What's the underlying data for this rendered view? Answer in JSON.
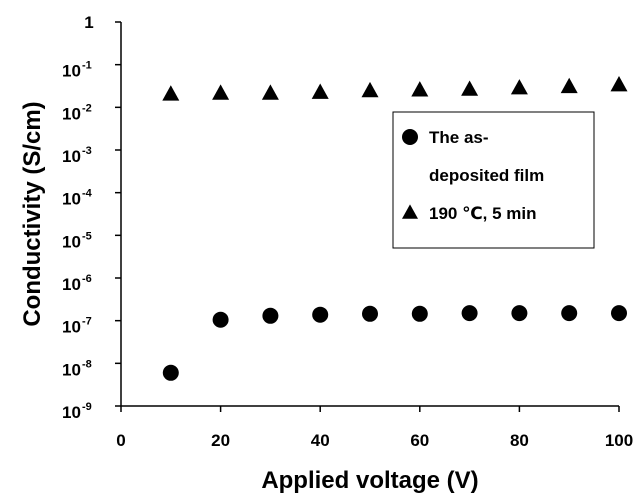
{
  "chart_data": {
    "type": "scatter",
    "xlabel": "Applied voltage (V)",
    "ylabel": "Conductivity (S/cm)",
    "xlim": [
      0,
      100
    ],
    "ylim_log10": [
      -9,
      0
    ],
    "y_scale": "log",
    "grid": false,
    "legend_position": "right-center",
    "x_ticks": [
      "0",
      "20",
      "40",
      "60",
      "80",
      "100"
    ],
    "y_ticks": [
      {
        "base": "10",
        "exp": "-9"
      },
      {
        "base": "10",
        "exp": "-8"
      },
      {
        "base": "10",
        "exp": "-7"
      },
      {
        "base": "10",
        "exp": "-6"
      },
      {
        "base": "10",
        "exp": "-5"
      },
      {
        "base": "10",
        "exp": "-4"
      },
      {
        "base": "10",
        "exp": "-3"
      },
      {
        "base": "10",
        "exp": "-2"
      },
      {
        "base": "10",
        "exp": "-1"
      },
      {
        "base": "1",
        "exp": ""
      }
    ],
    "series": [
      {
        "name": "The as-deposited film",
        "legend_lines": [
          "The as-",
          "deposited film"
        ],
        "marker": "circle",
        "color": "#000000",
        "x": [
          10,
          20,
          30,
          40,
          50,
          60,
          70,
          80,
          90,
          100
        ],
        "y": [
          6e-09,
          1.05e-07,
          1.3e-07,
          1.38e-07,
          1.45e-07,
          1.45e-07,
          1.5e-07,
          1.5e-07,
          1.5e-07,
          1.5e-07
        ]
      },
      {
        "name": "190 ℃, 5 min",
        "legend_lines": [
          "190 ℃, 5 min"
        ],
        "marker": "triangle",
        "color": "#000000",
        "x": [
          10,
          20,
          30,
          40,
          50,
          60,
          70,
          80,
          90,
          100
        ],
        "y": [
          0.02,
          0.021,
          0.021,
          0.022,
          0.024,
          0.025,
          0.026,
          0.028,
          0.03,
          0.033
        ]
      }
    ]
  }
}
